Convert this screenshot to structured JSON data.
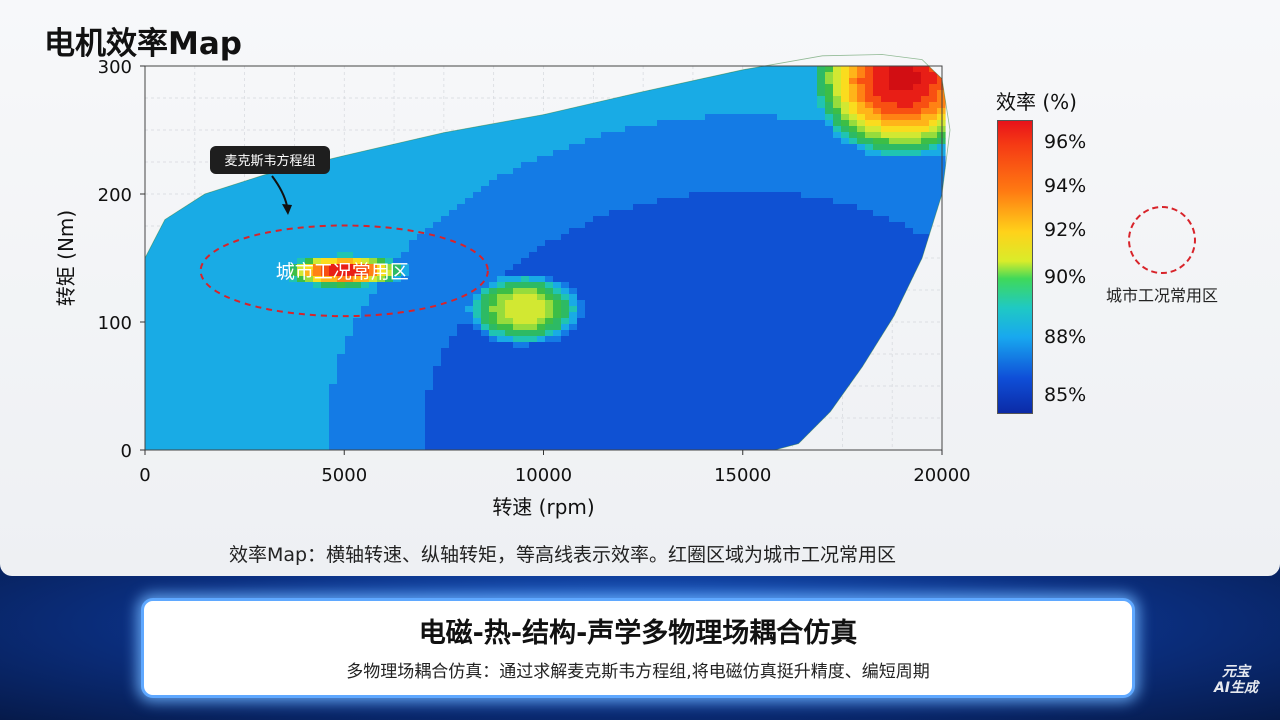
{
  "page_title": "电机效率Map",
  "caption": "效率Map：横轴转速、纵轴转矩，等高线表示效率。红圈区域为城市工况常用区",
  "chart_data": {
    "type": "heatmap",
    "title": "电机效率Map",
    "xlabel": "转速 (rpm)",
    "ylabel": "转矩 (Nm)",
    "xlim": [
      0,
      20000
    ],
    "ylim": [
      0,
      300
    ],
    "x_ticks": [
      0,
      5000,
      10000,
      15000,
      20000
    ],
    "y_ticks": [
      0,
      100,
      200,
      300
    ],
    "grid": true,
    "colorbar": {
      "title": "效率 (%)",
      "tick_labels": [
        "96%",
        "94%",
        "92%",
        "90%",
        "88%",
        "85%"
      ],
      "range": [
        85,
        97
      ]
    },
    "annotations": [
      {
        "text": "麦克斯韦方程组",
        "type": "callout"
      },
      {
        "text": "城市工况常用区",
        "type": "region",
        "center": [
          5000,
          140
        ],
        "x_range": [
          1400,
          8200
        ],
        "y_range": [
          110,
          170
        ]
      }
    ],
    "legend": {
      "label": "城市工况常用区",
      "placement": "right"
    }
  },
  "colors": {
    "efficiency_high": "#e8121a",
    "efficiency_low": "#0b2aa6",
    "region_outline": "#d8232a",
    "banner_glow": "#5fa8ff"
  },
  "banner": {
    "title": "电磁-热-结构-声学多物理场耦合仿真",
    "subtitle": "多物理场耦合仿真：通过求解麦克斯韦方程组,将电磁仿真挺升精度、编短周期"
  },
  "watermark": {
    "line1": "元宝",
    "line2": "AI生成"
  }
}
